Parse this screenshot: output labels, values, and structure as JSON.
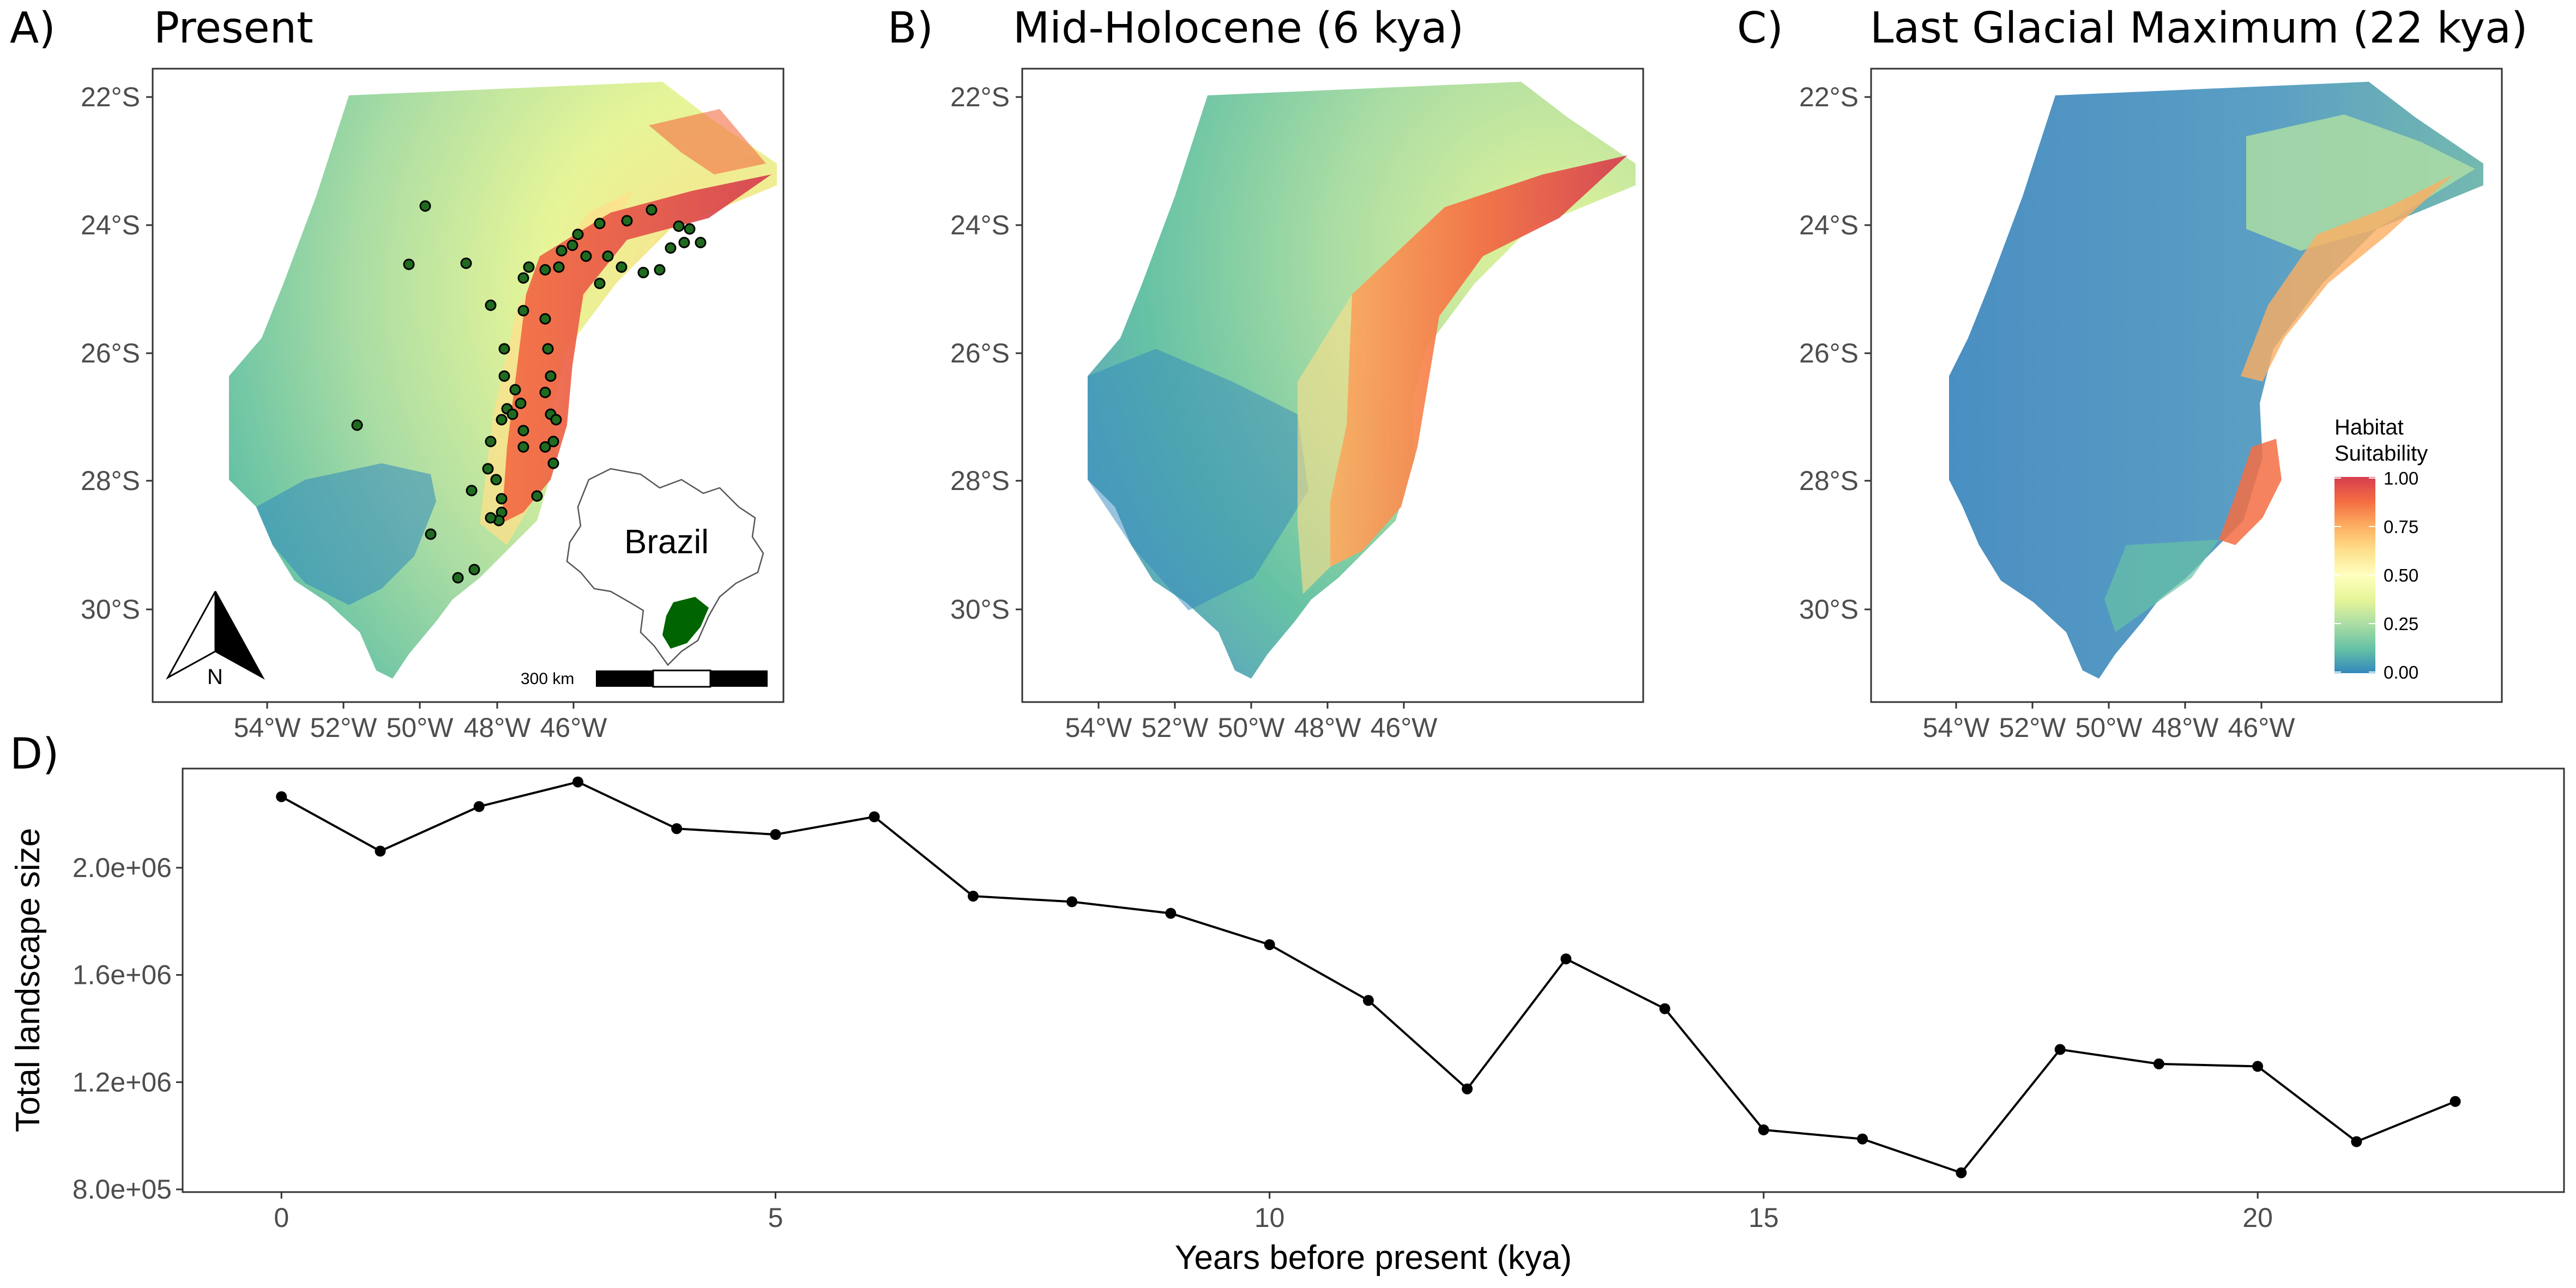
{
  "panels": {
    "a": {
      "tag": "A)",
      "title": "Present"
    },
    "b": {
      "tag": "B)",
      "title": "Mid-Holocene (6 kya)"
    },
    "c": {
      "tag": "C)",
      "title": "Last Glacial Maximum (22 kya)"
    },
    "d": {
      "tag": "D)"
    }
  },
  "map_axes": {
    "lat_labels": [
      "22°S",
      "24°S",
      "26°S",
      "28°S",
      "30°S"
    ],
    "lon_labels": [
      "54°W",
      "52°W",
      "50°W",
      "48°W",
      "46°W"
    ]
  },
  "legend": {
    "title_line1": "Habitat",
    "title_line2": "Suitability",
    "ticks": [
      "1.00",
      "0.75",
      "0.50",
      "0.25",
      "0.00"
    ],
    "colors": [
      "#d53e4f",
      "#f46d43",
      "#fdae61",
      "#fee08b",
      "#ffffbf",
      "#e6f598",
      "#abdda4",
      "#66c2a5",
      "#3288bd"
    ]
  },
  "inset": {
    "country": "Brazil",
    "region_color": "#006400"
  },
  "scale_bar": {
    "label": "300 km"
  },
  "north_arrow": {
    "label": "N"
  },
  "occurrence_color": "#1f6b1f",
  "chart_data": {
    "type": "line",
    "xlabel": "Years before present (kya)",
    "ylabel": "Total landscape size",
    "xlim": [
      -1.0,
      23.1
    ],
    "ylim": [
      790000,
      2370000
    ],
    "x_ticks": [
      0,
      5,
      10,
      15,
      20
    ],
    "x_tick_labels": [
      "0",
      "5",
      "10",
      "15",
      "20"
    ],
    "y_ticks": [
      800000,
      1200000,
      1600000,
      2000000
    ],
    "y_tick_labels": [
      "8.0e+05",
      "1.2e+06",
      "1.6e+06",
      "2.0e+06"
    ],
    "grid": false,
    "line_color": "#000000",
    "x": [
      0,
      1,
      2,
      3,
      4,
      5,
      6,
      7,
      8,
      9,
      10,
      11,
      12,
      13,
      14,
      15,
      16,
      17,
      18,
      19,
      20,
      21,
      22
    ],
    "y": [
      2265000,
      2062000,
      2228000,
      2320000,
      2146000,
      2124000,
      2190000,
      1894000,
      1873000,
      1830000,
      1713000,
      1505000,
      1175000,
      1660000,
      1474000,
      1022000,
      988000,
      862000,
      1322000,
      1268000,
      1259000,
      978000,
      1128000
    ]
  }
}
